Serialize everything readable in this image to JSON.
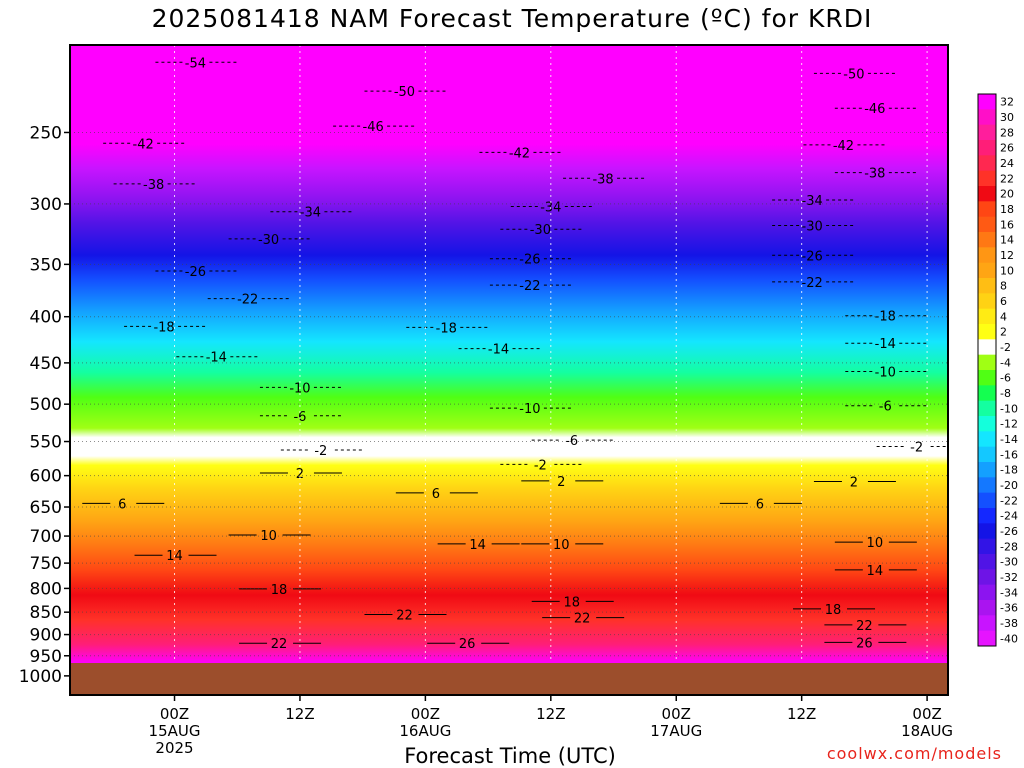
{
  "chart_data": {
    "type": "heatmap",
    "title": "2025081418 NAM Forecast Temperature (ºC) for KRDI",
    "xlabel": "Forecast Time (UTC)",
    "credit": "coolwx.com/models",
    "y_axis": {
      "scale": "log-pressure",
      "inverted": true,
      "ylim": [
        1050,
        200
      ],
      "ticks": [
        250,
        300,
        350,
        400,
        450,
        500,
        550,
        600,
        650,
        700,
        750,
        800,
        850,
        900,
        950,
        1000
      ]
    },
    "x_axis": {
      "unit": "hours",
      "xlim": [
        -4,
        80
      ],
      "ticks": [
        {
          "hour": 6,
          "lines": [
            "00Z",
            "15AUG",
            "2025"
          ]
        },
        {
          "hour": 18,
          "lines": [
            "12Z"
          ]
        },
        {
          "hour": 30,
          "lines": [
            "00Z",
            "16AUG"
          ]
        },
        {
          "hour": 42,
          "lines": [
            "12Z"
          ]
        },
        {
          "hour": 54,
          "lines": [
            "00Z",
            "17AUG"
          ]
        },
        {
          "hour": 66,
          "lines": [
            "12Z"
          ]
        },
        {
          "hour": 78,
          "lines": [
            "00Z",
            "18AUG"
          ]
        }
      ]
    },
    "ground_level_hpa": 965,
    "colorbar": {
      "labels": [
        "32",
        "30",
        "28",
        "26",
        "24",
        "22",
        "20",
        "18",
        "16",
        "14",
        "12",
        "10",
        "8",
        "6",
        "4",
        "2",
        "-2",
        "-4",
        "-6",
        "-8",
        "-10",
        "-12",
        "-14",
        "-16",
        "-18",
        "-20",
        "-22",
        "-24",
        "-26",
        "-28",
        "-30",
        "-32",
        "-34",
        "-36",
        "-38",
        "-40"
      ],
      "colors": [
        "#ff00ff",
        "#ff0fc8",
        "#ff1e9c",
        "#ff1e78",
        "#ff2850",
        "#ff3228",
        "#f00a14",
        "#ff4614",
        "#ff5a14",
        "#ff7814",
        "#ff9614",
        "#ffa514",
        "#ffbe14",
        "#ffd214",
        "#ffeb14",
        "#ffff14",
        "#ffffff",
        "#a0ff14",
        "#50ff14",
        "#14ff50",
        "#14ffa0",
        "#14ffdc",
        "#14e6ff",
        "#14c8ff",
        "#14a0ff",
        "#1478ff",
        "#1450ff",
        "#1428ff",
        "#1414e6",
        "#3214e6",
        "#5014e6",
        "#6e14e6",
        "#8c14f0",
        "#aa14f0",
        "#c814ff",
        "#e614ff"
      ]
    },
    "isotherm_labels": [
      {
        "hour": 8,
        "p": 209,
        "t": "-54"
      },
      {
        "hour": 28,
        "p": 225,
        "t": "-50"
      },
      {
        "hour": 71,
        "p": 215,
        "t": "-50"
      },
      {
        "hour": 25,
        "p": 246,
        "t": "-46"
      },
      {
        "hour": 73,
        "p": 235,
        "t": "-46"
      },
      {
        "hour": 3,
        "p": 257,
        "t": "-42"
      },
      {
        "hour": 39,
        "p": 263,
        "t": "-42"
      },
      {
        "hour": 70,
        "p": 258,
        "t": "-42"
      },
      {
        "hour": 4,
        "p": 285,
        "t": "-38"
      },
      {
        "hour": 47,
        "p": 281,
        "t": "-38"
      },
      {
        "hour": 73,
        "p": 277,
        "t": "-38"
      },
      {
        "hour": 19,
        "p": 306,
        "t": "-34"
      },
      {
        "hour": 42,
        "p": 302,
        "t": "-34"
      },
      {
        "hour": 67,
        "p": 297,
        "t": "-34"
      },
      {
        "hour": 15,
        "p": 328,
        "t": "-30"
      },
      {
        "hour": 41,
        "p": 320,
        "t": "-30"
      },
      {
        "hour": 67,
        "p": 317,
        "t": "-30"
      },
      {
        "hour": 8,
        "p": 356,
        "t": "-26"
      },
      {
        "hour": 40,
        "p": 345,
        "t": "-26"
      },
      {
        "hour": 67,
        "p": 342,
        "t": "-26"
      },
      {
        "hour": 13,
        "p": 382,
        "t": "-22"
      },
      {
        "hour": 40,
        "p": 369,
        "t": "-22"
      },
      {
        "hour": 67,
        "p": 366,
        "t": "-22"
      },
      {
        "hour": 5,
        "p": 410,
        "t": "-18"
      },
      {
        "hour": 32,
        "p": 411,
        "t": "-18"
      },
      {
        "hour": 74,
        "p": 399,
        "t": "-18"
      },
      {
        "hour": 10,
        "p": 443,
        "t": "-14"
      },
      {
        "hour": 37,
        "p": 434,
        "t": "-14"
      },
      {
        "hour": 74,
        "p": 428,
        "t": "-14"
      },
      {
        "hour": 18,
        "p": 479,
        "t": "-10"
      },
      {
        "hour": 40,
        "p": 505,
        "t": "-10"
      },
      {
        "hour": 74,
        "p": 460,
        "t": "-10"
      },
      {
        "hour": 18,
        "p": 515,
        "t": "-6"
      },
      {
        "hour": 44,
        "p": 548,
        "t": "-6"
      },
      {
        "hour": 74,
        "p": 502,
        "t": "-6"
      },
      {
        "hour": 41,
        "p": 583,
        "t": "-2"
      },
      {
        "hour": 20,
        "p": 562,
        "t": "-2"
      },
      {
        "hour": 77,
        "p": 557,
        "t": "-2"
      },
      {
        "hour": 18,
        "p": 596,
        "t": "2"
      },
      {
        "hour": 43,
        "p": 608,
        "t": "2"
      },
      {
        "hour": 71,
        "p": 609,
        "t": "2"
      },
      {
        "hour": 1,
        "p": 644,
        "t": "6"
      },
      {
        "hour": 31,
        "p": 627,
        "t": "6"
      },
      {
        "hour": 62,
        "p": 644,
        "t": "6"
      },
      {
        "hour": 15,
        "p": 698,
        "t": "10"
      },
      {
        "hour": 43,
        "p": 714,
        "t": "10"
      },
      {
        "hour": 73,
        "p": 711,
        "t": "10"
      },
      {
        "hour": 6,
        "p": 735,
        "t": "14"
      },
      {
        "hour": 35,
        "p": 714,
        "t": "14"
      },
      {
        "hour": 73,
        "p": 763,
        "t": "14"
      },
      {
        "hour": 16,
        "p": 801,
        "t": "18"
      },
      {
        "hour": 44,
        "p": 827,
        "t": "18"
      },
      {
        "hour": 69,
        "p": 843,
        "t": "18"
      },
      {
        "hour": 28,
        "p": 855,
        "t": "22"
      },
      {
        "hour": 16,
        "p": 920,
        "t": "22"
      },
      {
        "hour": 45,
        "p": 862,
        "t": "22"
      },
      {
        "hour": 72,
        "p": 878,
        "t": "22"
      },
      {
        "hour": 34,
        "p": 920,
        "t": "26"
      },
      {
        "hour": 72,
        "p": 918,
        "t": "26"
      }
    ]
  }
}
